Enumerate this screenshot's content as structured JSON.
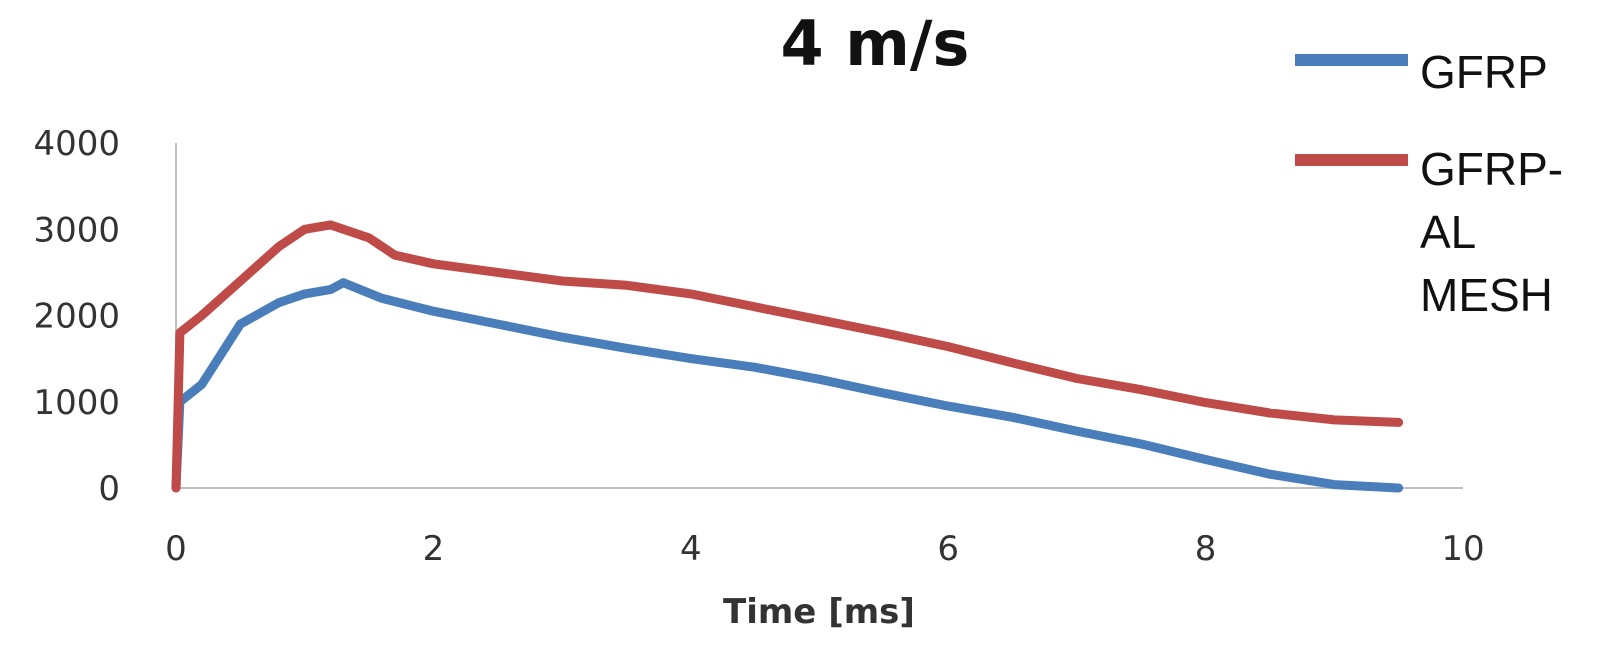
{
  "chart_data": {
    "type": "line",
    "title": "4 m/s",
    "xlabel": "Time [ms]",
    "ylabel": "",
    "xlim": [
      0,
      10
    ],
    "ylim": [
      0,
      4000
    ],
    "x_ticks": [
      0,
      2,
      4,
      6,
      8,
      10
    ],
    "y_ticks": [
      0,
      1000,
      2000,
      3000,
      4000
    ],
    "grid": false,
    "legend_position": "top-right",
    "series": [
      {
        "name": "GFRP",
        "color": "#4a7ebb",
        "x": [
          0,
          0.03,
          0.2,
          0.5,
          0.8,
          1.0,
          1.2,
          1.3,
          1.6,
          2.0,
          2.5,
          3.0,
          3.5,
          4.0,
          4.5,
          5.0,
          5.5,
          6.0,
          6.5,
          7.0,
          7.5,
          8.0,
          8.5,
          9.0,
          9.5
        ],
        "y": [
          0,
          1000,
          1200,
          1900,
          2150,
          2250,
          2300,
          2380,
          2200,
          2050,
          1900,
          1750,
          1620,
          1500,
          1400,
          1260,
          1100,
          950,
          820,
          660,
          510,
          330,
          160,
          40,
          0
        ]
      },
      {
        "name": "GFRP-AL MESH",
        "color": "#be4b48",
        "x": [
          0,
          0.03,
          0.2,
          0.5,
          0.8,
          1.0,
          1.2,
          1.5,
          1.7,
          2.0,
          2.5,
          3.0,
          3.5,
          4.0,
          4.5,
          5.0,
          5.5,
          6.0,
          6.5,
          7.0,
          7.5,
          8.0,
          8.5,
          9.0,
          9.5
        ],
        "y": [
          0,
          1800,
          2000,
          2400,
          2800,
          3000,
          3050,
          2900,
          2700,
          2600,
          2500,
          2400,
          2350,
          2250,
          2100,
          1950,
          1800,
          1640,
          1450,
          1270,
          1140,
          990,
          870,
          790,
          760
        ]
      }
    ]
  }
}
